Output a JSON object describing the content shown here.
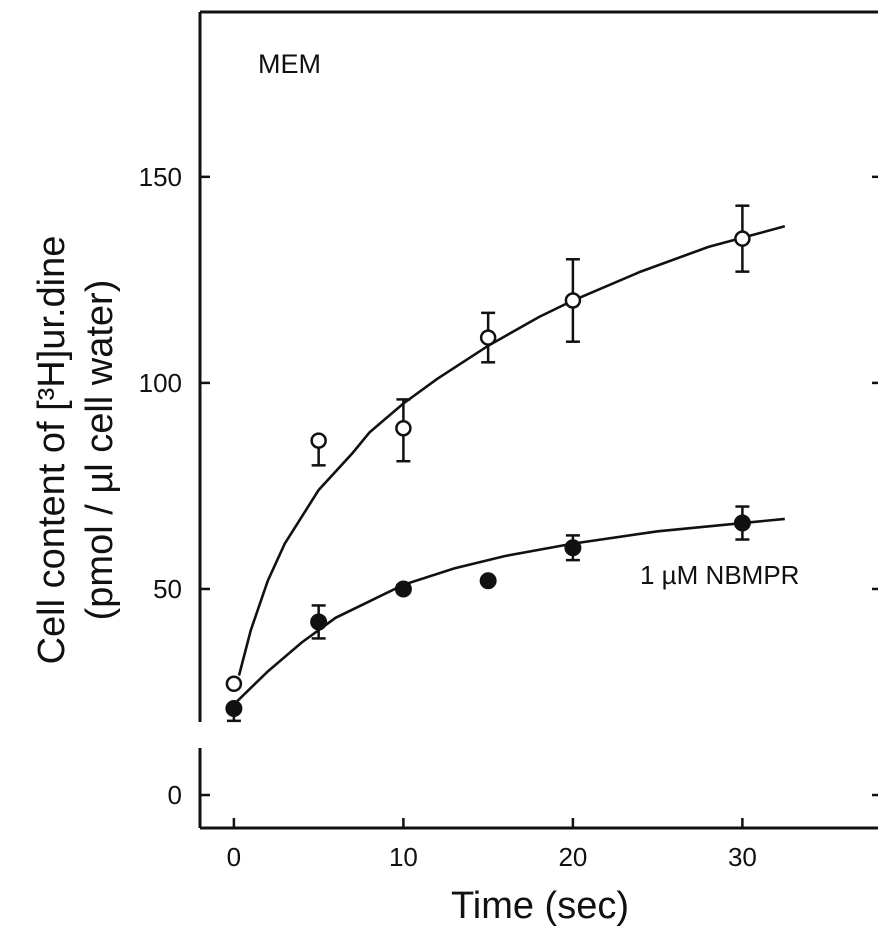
{
  "chart_data": {
    "type": "scatter",
    "title": "",
    "xlabel": "Time (sec)",
    "ylabel_line1": "Cell content of [³H]ur.dine",
    "ylabel_line2": "(pmol / µl cell water)",
    "xlim": [
      -2,
      38
    ],
    "ylim": [
      -8,
      190
    ],
    "xticks": [
      0,
      10,
      20,
      30
    ],
    "yticks": [
      0,
      50,
      100,
      150
    ],
    "grid": false,
    "annotations": [
      {
        "text": "MEM",
        "x": 5,
        "y": 177
      },
      {
        "text": "1 µM NBMPR",
        "x": 24.5,
        "y": 51
      }
    ],
    "series": [
      {
        "marker": "open-circle",
        "x": [
          0,
          5,
          10,
          15,
          20,
          30
        ],
        "y": [
          27,
          86,
          89,
          111,
          120,
          135
        ],
        "err_low": [
          27,
          80,
          81,
          105,
          110,
          127
        ],
        "err_high": [
          27,
          86,
          96,
          117,
          130,
          143
        ],
        "fit": [
          [
            0.3,
            29
          ],
          [
            1,
            40
          ],
          [
            2,
            52
          ],
          [
            3,
            61
          ],
          [
            5,
            74
          ],
          [
            7,
            83
          ],
          [
            8,
            88
          ],
          [
            10,
            95
          ],
          [
            12,
            101
          ],
          [
            15,
            109
          ],
          [
            18,
            116
          ],
          [
            20,
            120
          ],
          [
            24,
            127
          ],
          [
            28,
            133
          ],
          [
            32.5,
            138
          ]
        ]
      },
      {
        "marker": "filled-circle",
        "x": [
          0,
          5,
          10,
          15,
          20,
          30
        ],
        "y": [
          21,
          42,
          50,
          52,
          60,
          66
        ],
        "err_low": [
          18,
          38,
          49,
          52,
          57,
          62
        ],
        "err_high": [
          21,
          46,
          51,
          52,
          63,
          70
        ],
        "fit": [
          [
            0,
            22
          ],
          [
            2,
            30
          ],
          [
            4,
            37
          ],
          [
            6,
            43
          ],
          [
            8,
            47
          ],
          [
            10,
            51
          ],
          [
            13,
            55
          ],
          [
            16,
            58
          ],
          [
            20,
            61
          ],
          [
            25,
            64
          ],
          [
            32.5,
            67
          ]
        ]
      }
    ]
  }
}
